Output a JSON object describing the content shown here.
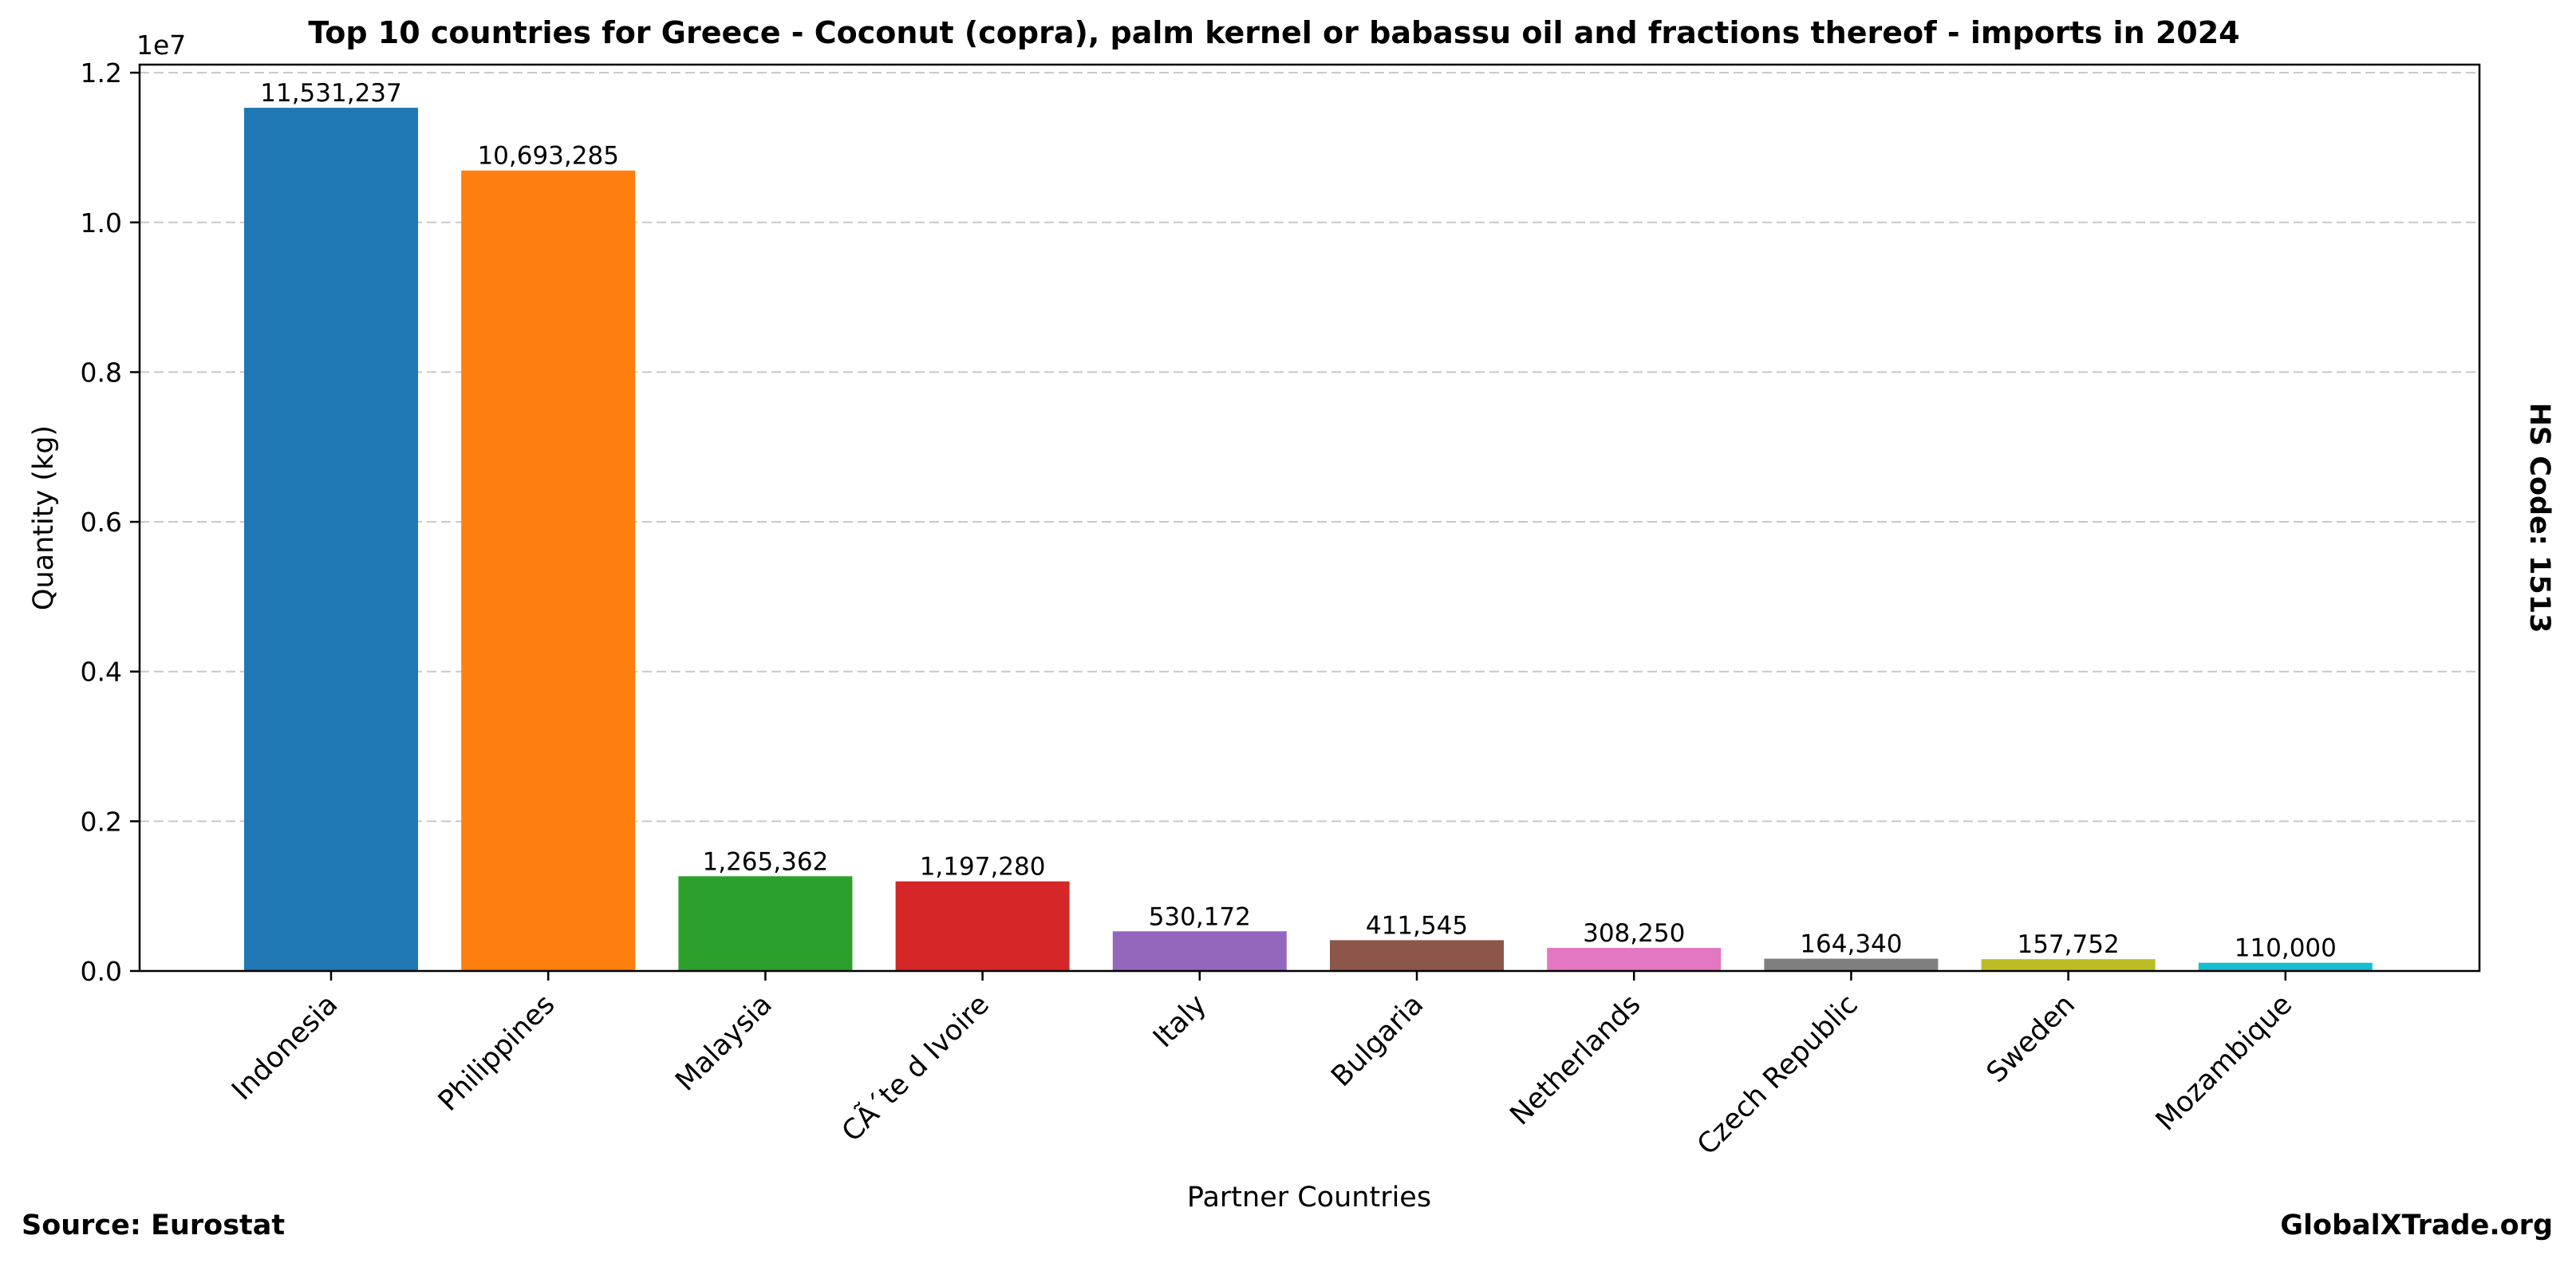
{
  "chart_data": {
    "type": "bar",
    "title": "Top 10 countries for Greece - Coconut (copra), palm kernel or babassu oil and fractions thereof - imports in 2024",
    "xlabel": "Partner Countries",
    "ylabel": "Quantity (kg)",
    "y_offset_label": "1e7",
    "side_label": "HS Code: 1513",
    "source_label": "Source: Eurostat",
    "brand_label": "GlobalXTrade.org",
    "categories": [
      "Indonesia",
      "Philippines",
      "Malaysia",
      "CÃ´te d Ivoire",
      "Italy",
      "Bulgaria",
      "Netherlands",
      "Czech Republic",
      "Sweden",
      "Mozambique"
    ],
    "values": [
      11531237,
      10693285,
      1265362,
      1197280,
      530172,
      411545,
      308250,
      164340,
      157752,
      110000
    ],
    "value_labels": [
      "11,531,237",
      "10,693,285",
      "1,265,362",
      "1,197,280",
      "530,172",
      "411,545",
      "308,250",
      "164,340",
      "157,752",
      "110,000"
    ],
    "colors": [
      "#1f77b4",
      "#ff7f0e",
      "#2ca02c",
      "#d62728",
      "#9467bd",
      "#8c564b",
      "#e377c2",
      "#7f7f7f",
      "#bcbd22",
      "#17becf"
    ],
    "yticks": [
      0,
      2000000,
      4000000,
      6000000,
      8000000,
      10000000,
      12000000
    ],
    "ytick_labels": [
      "0.0",
      "0.2",
      "0.4",
      "0.6",
      "0.8",
      "1.0",
      "1.2"
    ],
    "ylim": [
      0,
      12107798
    ],
    "grid": "y-dashed",
    "legend": "none"
  }
}
